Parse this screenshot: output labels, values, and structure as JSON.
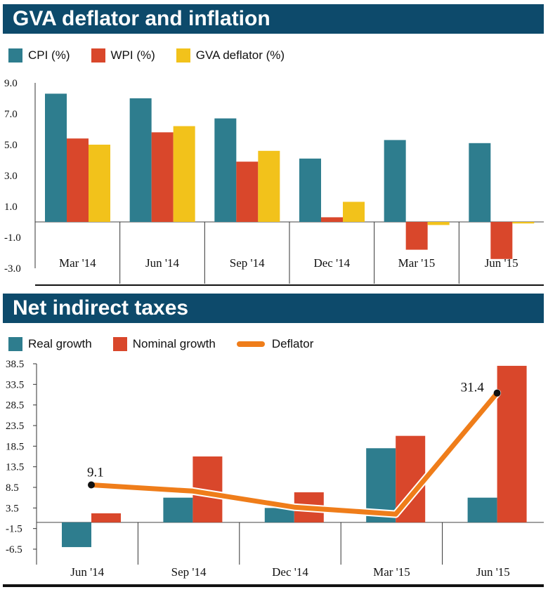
{
  "chart_data": [
    {
      "type": "bar",
      "title": "GVA deflator and inflation",
      "categories": [
        "Mar '14",
        "Jun '14",
        "Sep '14",
        "Dec '14",
        "Mar '15",
        "Jun '15"
      ],
      "series": [
        {
          "name": "CPI (%)",
          "color": "#2e7d8e",
          "values": [
            8.3,
            8.0,
            6.7,
            4.1,
            5.3,
            5.1
          ]
        },
        {
          "name": "WPI (%)",
          "color": "#d9472b",
          "values": [
            5.4,
            5.8,
            3.9,
            0.3,
            -1.8,
            -2.4
          ]
        },
        {
          "name": "GVA deflator (%)",
          "color": "#f2c21b",
          "values": [
            5.0,
            6.2,
            4.6,
            1.3,
            -0.2,
            -0.1
          ]
        }
      ],
      "ylim": [
        -3.0,
        9.0
      ],
      "yticks": [
        "9.0",
        "7.0",
        "5.0",
        "3.0",
        "1.0",
        "-1.0",
        "-3.0"
      ],
      "xlabel": "",
      "ylabel": ""
    },
    {
      "type": "bar",
      "title": "Net indirect taxes",
      "categories": [
        "Jun '14",
        "Sep '14",
        "Dec '14",
        "Mar '15",
        "Jun '15"
      ],
      "series": [
        {
          "name": "Real growth",
          "color": "#2e7d8e",
          "values": [
            -6.0,
            6.0,
            3.5,
            18.0,
            6.0
          ]
        },
        {
          "name": "Nominal growth",
          "color": "#d9472b",
          "values": [
            2.2,
            16.0,
            7.3,
            21.0,
            38.0
          ]
        },
        {
          "name": "Deflator",
          "type": "line",
          "color": "#ef7d1a",
          "values": [
            9.1,
            7.6,
            3.7,
            2.0,
            31.4
          ]
        }
      ],
      "annotations": [
        "9.1",
        "31.4"
      ],
      "ylim": [
        -6.5,
        38.5
      ],
      "yticks": [
        "38.5",
        "33.5",
        "28.5",
        "23.5",
        "18.5",
        "13.5",
        "8.5",
        "3.5",
        "-1.5",
        "-6.5"
      ],
      "xlabel": "",
      "ylabel": ""
    }
  ]
}
